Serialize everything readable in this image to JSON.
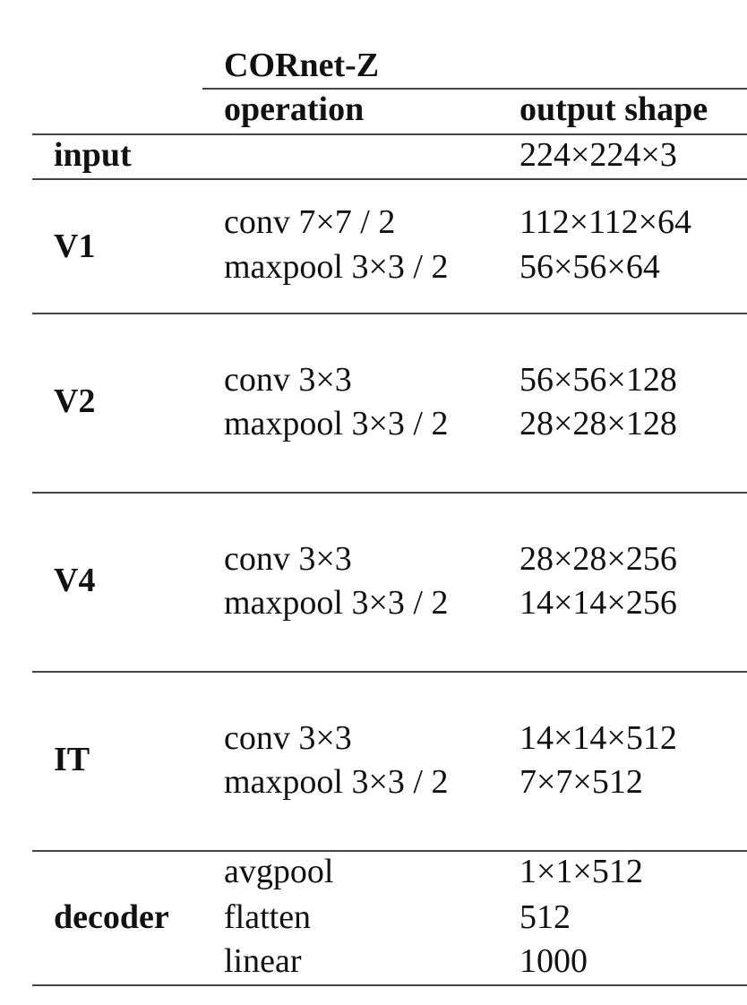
{
  "table": {
    "model_name": "CORnet-Z",
    "col_operation": "operation",
    "col_output": "output shape",
    "rows": [
      {
        "area": "input",
        "operations": [],
        "outputs": [
          "224×224×3"
        ]
      },
      {
        "area": "V1",
        "operations": [
          "conv 7×7 / 2",
          "maxpool 3×3 / 2"
        ],
        "outputs": [
          "112×112×64",
          "56×56×64"
        ]
      },
      {
        "area": "V2",
        "operations": [
          "conv 3×3",
          "maxpool 3×3 / 2"
        ],
        "outputs": [
          "56×56×128",
          "28×28×128"
        ]
      },
      {
        "area": "V4",
        "operations": [
          "conv 3×3",
          "maxpool 3×3 / 2"
        ],
        "outputs": [
          "28×28×256",
          "14×14×256"
        ]
      },
      {
        "area": "IT",
        "operations": [
          "conv 3×3",
          "maxpool 3×3 / 2"
        ],
        "outputs": [
          "14×14×512",
          "7×7×512"
        ]
      },
      {
        "area": "decoder",
        "operations": [
          "avgpool",
          "flatten",
          "linear"
        ],
        "outputs": [
          "1×1×512",
          "512",
          "1000"
        ]
      }
    ]
  }
}
